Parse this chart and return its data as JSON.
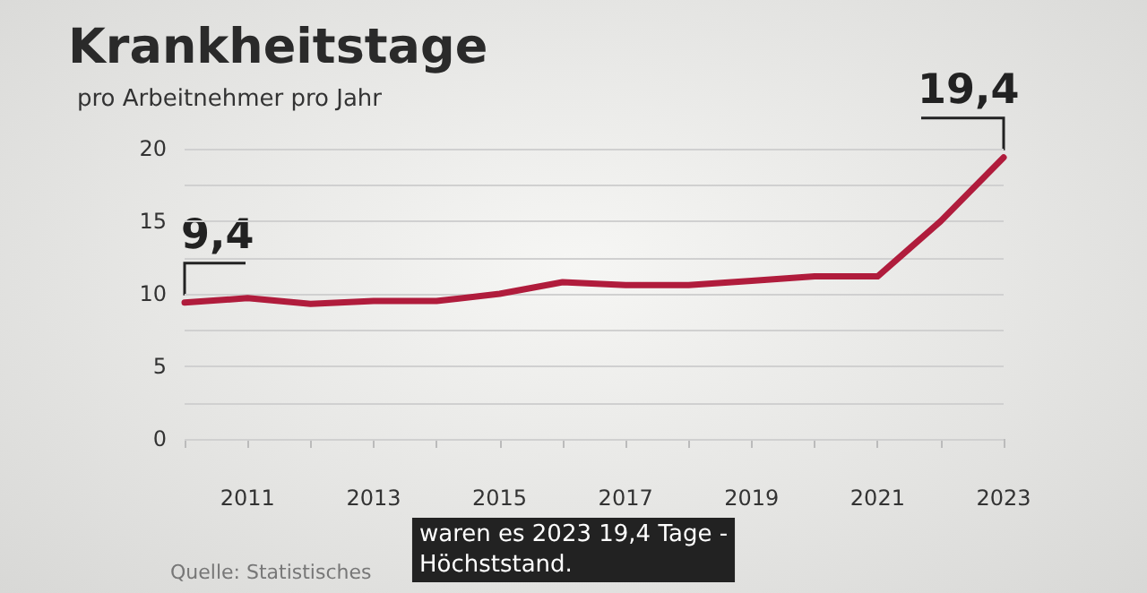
{
  "chart_data": {
    "type": "line",
    "title": "Krankheitstage",
    "subtitle": "pro Arbeitnehmer pro Jahr",
    "x": [
      2010,
      2011,
      2012,
      2013,
      2014,
      2015,
      2016,
      2017,
      2018,
      2019,
      2020,
      2021,
      2022,
      2023
    ],
    "series": [
      {
        "color": "#b01c3c",
        "values": [
          9.4,
          9.7,
          9.3,
          9.5,
          9.5,
          10.0,
          10.8,
          10.6,
          10.6,
          10.9,
          11.2,
          11.2,
          15.0,
          19.4
        ]
      }
    ],
    "xlim": [
      2010,
      2023
    ],
    "xticks": [
      {
        "value": 2010,
        "label": null
      },
      2011,
      {
        "value": 2012,
        "label": null
      },
      2013,
      {
        "value": 2014,
        "label": null
      },
      2015,
      {
        "value": 2016,
        "label": null
      },
      2017,
      {
        "value": 2018,
        "label": null
      },
      2019,
      {
        "value": 2020,
        "label": null
      },
      2021,
      {
        "value": 2022,
        "label": null
      },
      2023
    ],
    "ylim": [
      0,
      20
    ],
    "yticks": [
      0,
      {
        "value": 2.5,
        "label": null
      },
      5,
      {
        "value": 7.5,
        "label": null
      },
      10,
      {
        "value": 12.5,
        "label": null
      },
      15,
      {
        "value": 17.5,
        "label": null
      },
      20
    ],
    "grid": "y",
    "marker": "none",
    "line_style": "solid",
    "annotations": [
      {
        "text": "9,4",
        "x": 2010,
        "y": 9.4
      },
      {
        "text": "19,4",
        "x": 2023,
        "y": 19.4
      },
      "Quelle: Statistisches",
      "waren es 2023 19,4 Tage -\nHöchststand."
    ]
  }
}
